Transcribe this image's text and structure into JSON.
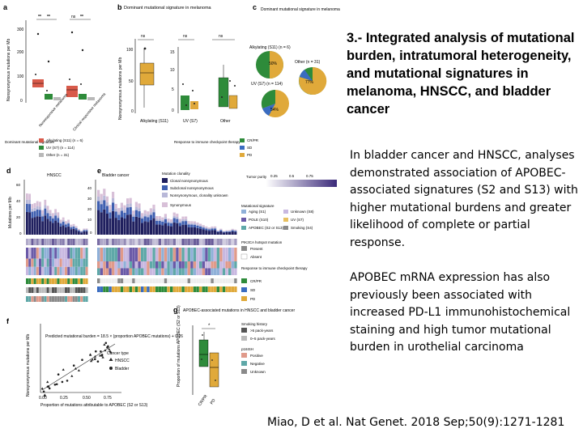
{
  "slide": {
    "title": "3.- Integrated analysis of mutational burden, intratumoral heterogeneity, and mutational signatures in melanoma, HNSCC, and bladder cancer",
    "paragraph1": "In bladder cancer and HNSCC, analyses demonstrated association of APOBEC-associated signatures (S2 and S13) with higher mutational burdens and greater likelihood of complete or partial response.",
    "paragraph2": "APOBEC mRNA expression has also previously been associated with increased PD-L1 immunohistochemical staining and high tumor mutational burden in urothelial carcinoma",
    "citation": "Miao, D et al. Nat Genet. 2018 Sep;50(9):1271-1281"
  },
  "figure": {
    "panel_letters": [
      "a",
      "b",
      "c",
      "d",
      "e",
      "f",
      "g"
    ],
    "a": {
      "ylabel": "Nonsynonymous mutations per Mb",
      "yticks": [
        "300",
        "200",
        "100",
        "0"
      ],
      "sig": [
        "**",
        "**",
        "ns",
        "**"
      ],
      "groups": [
        "Nonresponsive melanoma",
        "Clinical responsive melanoma"
      ]
    },
    "b": {
      "title": "Dominant mutational signature in melanoma",
      "ylabel": "Nonsynonymous mutations per Mb",
      "yticks_left": [
        "100",
        "50",
        "0"
      ],
      "yticks_right": [
        "15",
        "10",
        "5",
        "0"
      ],
      "sig": [
        "ns",
        "ns",
        "ns"
      ],
      "groups": [
        "Alkylating (S11)",
        "UV (S7)",
        "Other"
      ]
    },
    "c": {
      "title": "Dominant mutational signature in melanoma",
      "pie_labels": [
        "Alkylating (S11) (n = 6)",
        "Other (n = 31)",
        "UV (S7) (n = 114)"
      ],
      "pie_pct": [
        "50%",
        "77%",
        "54%"
      ]
    },
    "legend_a": {
      "title": "Dominant mutational signature",
      "items": [
        "Alkylating (S11) (n = 6)",
        "UV (S7) (n = 114)",
        "Other (n = 31)"
      ]
    },
    "legend_response": {
      "title": "Response to immune checkpoint therapy",
      "items": [
        "CR/PR",
        "SD",
        "PD"
      ]
    },
    "d": {
      "title": "HNSCC",
      "ylabel": "Mutations per Mb",
      "yticks": [
        "60",
        "40",
        "20",
        "0"
      ]
    },
    "e": {
      "title": "Bladder cancer",
      "yticks": [
        "40",
        "30",
        "20",
        "10",
        "0"
      ]
    },
    "clonality_legend": {
      "title": "Mutation clonality",
      "items": [
        "Clonal nonsynonymous",
        "Subclonal nonsynonymous",
        "Nonsynonymous, clonality unknown",
        "Synonymous"
      ]
    },
    "purity_legend": {
      "title": "Tumor purity",
      "ticks": [
        "0.25",
        "0.5",
        "0.75"
      ]
    },
    "signature_legend": {
      "title": "Mutational signature",
      "items": [
        "Aging (S1)",
        "Unknown (S8)",
        "POLE (S10)",
        "UV (S7)",
        "APOBEC (S2 or S13)",
        "Smoking (S4)"
      ]
    },
    "pik3ca_legend": {
      "title": "PIK3CA hotspot mutation",
      "items": [
        "Present",
        "Absent"
      ]
    },
    "response_legend2": {
      "title": "Response to immune checkpoint therapy",
      "items": [
        "CR/PR",
        "SD",
        "PD"
      ]
    },
    "smoking_legend": {
      "title": "Smoking history",
      "items": [
        ">5 pack-years",
        "0–5 pack-years"
      ]
    },
    "p16_legend": {
      "title": "p16ISH",
      "items": [
        "Positive",
        "Negative",
        "Unknown"
      ]
    },
    "f": {
      "annotation": "Predicted mutational burden = 18.5 × (proportion APOBEC mutations) + 0.26",
      "ylabel": "Nonsynonymous mutations per Mb",
      "xlabel": "Proportion of mutations attributable to APOBEC (S2 or S13)",
      "xticks": [
        "0.00",
        "0.25",
        "0.50",
        "0.75"
      ],
      "legend_title": "Cancer type",
      "legend_items": [
        "HNSCC",
        "Bladder"
      ]
    },
    "g": {
      "title": "APOBEC-associated mutations in HNSCC and bladder cancer",
      "ylabel": "Proportion of mutations APOBEC (S2 or S13)",
      "groups": [
        "CR/PR",
        "PD"
      ],
      "sig": "*"
    },
    "colors": {
      "crpr": "#2e8b3a",
      "sd": "#3a6cc0",
      "pd": "#e0a93a",
      "alkylating": "#d85a4a",
      "uv": "#2e8b3a",
      "other": "#b8b8b8",
      "clonal": "#1f1f5e",
      "subclonal": "#3f5fb0",
      "unknown_clonality": "#b8b8d8",
      "synonymous": "#d8c0d8",
      "teal": "#5fa8a8",
      "salmon": "#e09a8a"
    }
  }
}
